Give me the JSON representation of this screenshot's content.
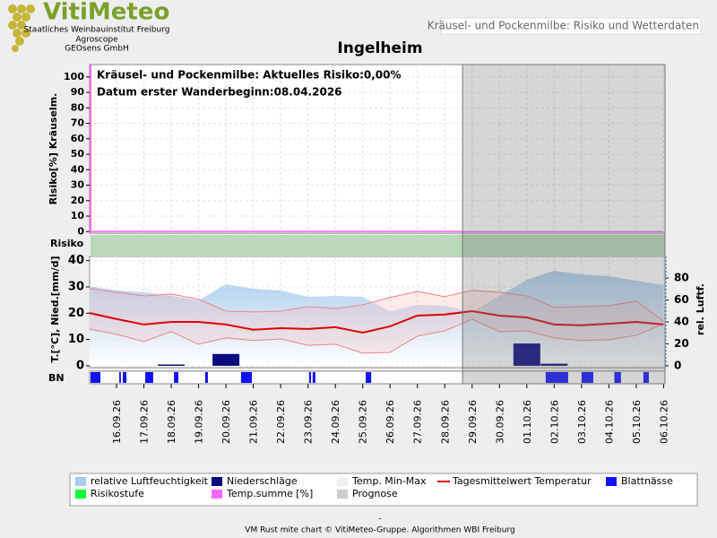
{
  "header": {
    "logo": "VitiMeteo",
    "institutes": [
      "Staatliches Weinbauinstitut Freiburg",
      "Agroscope",
      "GEOsens GmbH"
    ],
    "banner": "Kräusel- und Pockenmilbe: Risiko und Wetterdaten"
  },
  "chart_data": {
    "type": "line",
    "title": "Ingelheim",
    "categories": [
      null,
      "16.09.26",
      "17.09.26",
      "18.09.26",
      "19.09.26",
      "20.09.26",
      "21.09.26",
      "22.09.26",
      "23.09.26",
      "24.09.26",
      "25.09.26",
      "26.09.26",
      "27.09.26",
      "28.09.26",
      "29.09.26",
      "30.09.26",
      "01.10.26",
      "02.10.26",
      "03.10.26",
      "04.10.26",
      "05.10.26",
      "06.10.26"
    ],
    "prognosis_start": 13.65,
    "risk_panel": {
      "ylabel": "Risiko[%] Kräuselm.",
      "ylim": [
        -1,
        108
      ],
      "yticks": [
        0,
        10,
        20,
        30,
        40,
        50,
        60,
        70,
        80,
        90,
        100
      ],
      "annotations": [
        "Kräusel- und Pockenmilbe: Aktuelles Risiko:0,00%",
        "Datum erster Wanderbeginn:08.04.2026"
      ],
      "series": {
        "name": "Temp.summe [%]",
        "color": "#ff66ff",
        "values": [
          0,
          0,
          0,
          0,
          0,
          0,
          0,
          0,
          0,
          0,
          0,
          0,
          0,
          0,
          0,
          0,
          0,
          0,
          0,
          0,
          0,
          0
        ]
      }
    },
    "risk_band": {
      "label": "Risiko",
      "name": "Risikostufe",
      "color": "#b7d9b7",
      "legend_color": "#00ff33"
    },
    "weather_panel": {
      "ylabel": "T.[°C], Nied.[mm/d]",
      "y2label": "rel. Luftf.",
      "ylim": [
        -0.7,
        41.6
      ],
      "yticks": [
        0,
        10,
        20,
        30,
        40
      ],
      "y2lim": [
        -1.6,
        99.6
      ],
      "y2ticks": [
        0,
        20,
        40,
        60,
        80
      ],
      "series": [
        {
          "name": "relative Luftfeuchtigkeit",
          "color": "#a8cdf0",
          "axis": "y2",
          "values": [
            72.6,
            68.6,
            67,
            63.7,
            59.6,
            74.3,
            70.2,
            68.6,
            62.9,
            63.7,
            62.9,
            49.8,
            55.5,
            54.7,
            49,
            63.7,
            78.4,
            86.5,
            83.3,
            81.6,
            77.6,
            73.5
          ]
        },
        {
          "name": "Niederschläge",
          "color": "#0a0a80",
          "values": [
            0,
            0,
            0,
            0.5,
            0,
            4.5,
            0,
            0,
            0,
            0,
            0,
            0,
            0,
            0,
            0,
            0,
            8.5,
            0.8,
            0,
            0,
            0,
            0
          ]
        },
        {
          "name": "Temp. Min-Max",
          "color": "#f0f0f0",
          "line_color": "#f08080",
          "max": [
            29.4,
            28,
            26.6,
            27.3,
            25.3,
            20.8,
            20.5,
            20.8,
            22.5,
            21.8,
            23.2,
            26,
            28.3,
            26.3,
            28.7,
            28,
            26.6,
            22.2,
            22.5,
            22.9,
            24.6,
            17
          ],
          "min": [
            14,
            12,
            9.2,
            13,
            8.2,
            10.6,
            9.6,
            10.2,
            7.8,
            8.2,
            4.8,
            5.1,
            11.3,
            13.3,
            17.7,
            13,
            13.3,
            10.6,
            9.6,
            9.9,
            11.6,
            16
          ]
        },
        {
          "name": "Tagesmittelwert Temperatur",
          "color": "#e00000",
          "values": [
            20.1,
            17.8,
            15.7,
            16.7,
            16.7,
            15.7,
            13.7,
            14.3,
            14,
            14.7,
            12.6,
            15,
            19.1,
            19.5,
            20.8,
            19.1,
            18.4,
            15.7,
            15.4,
            16,
            16.7,
            15.7
          ]
        }
      ]
    },
    "leaf_wetness": {
      "label": "BN",
      "name": "Blattnässe",
      "color": "#1010ff",
      "intervals": [
        [
          0.05,
          0.41
        ],
        [
          1.1,
          1.16
        ],
        [
          1.23,
          1.36
        ],
        [
          2.05,
          2.34
        ],
        [
          3.1,
          3.26
        ],
        [
          4.24,
          4.34
        ],
        [
          5.55,
          5.95
        ],
        [
          8.04,
          8.11
        ],
        [
          8.17,
          8.27
        ],
        [
          10.11,
          10.31
        ],
        [
          16.69,
          17.51
        ],
        [
          18.0,
          18.43
        ],
        [
          19.2,
          19.44
        ],
        [
          20.26,
          20.46
        ]
      ]
    },
    "prognosis": {
      "name": "Prognose",
      "color": "#cccccc"
    },
    "footer_dash": "-",
    "footer": "VM Rust mite chart © VitiMeteo-Gruppe. Algorithmen WBI Freiburg"
  }
}
